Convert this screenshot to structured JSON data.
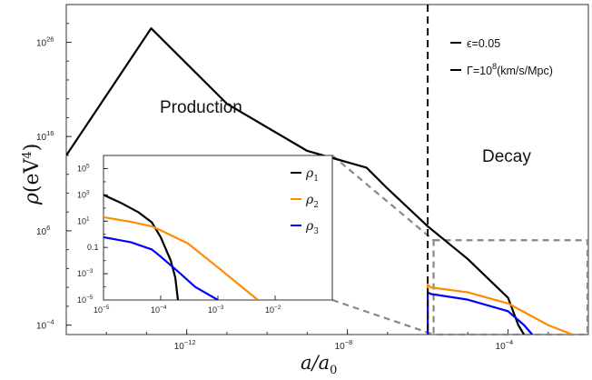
{
  "chart_data": [
    {
      "type": "line",
      "xlabel": "a/a0",
      "ylabel": "ρ(eV⁴)",
      "x_scale": "log",
      "y_scale": "log",
      "xlim": [
        1e-15,
        0.01
      ],
      "ylim": [
        1e-05,
        1e+30
      ],
      "x_ticks": [
        {
          "value": 1e-12,
          "base": "10",
          "exp": "−12"
        },
        {
          "value": 1e-08,
          "base": "10",
          "exp": "−8"
        },
        {
          "value": 0.0001,
          "base": "10",
          "exp": "−4"
        }
      ],
      "y_ticks": [
        {
          "value": 0.0001,
          "base": "10",
          "exp": "−4"
        },
        {
          "value": 1000000.0,
          "base": "10",
          "exp": "6"
        },
        {
          "value": 1e+16,
          "base": "10",
          "exp": "16"
        },
        {
          "value": 1e+26,
          "base": "10",
          "exp": "26"
        }
      ],
      "annotations": [
        "Production",
        "Decay"
      ],
      "legend": {
        "placement": "top-right",
        "entries": [
          {
            "text_a": "ϵ=0.05",
            "base": "",
            "exp": "",
            "text_b": ""
          },
          {
            "text_a": "Γ=10",
            "base": "",
            "exp": "8",
            "text_b": "(km/s/Mpc)"
          }
        ]
      },
      "vertical_marker_x": 1e-06,
      "series": [
        {
          "color": "#000000",
          "x": [
            1e-15,
            1.3e-13,
            1e-11,
            1e-09,
            3e-08,
            1e-07,
            1e-06,
            1e-05,
            0.0001,
            0.00018,
            0.00025
          ],
          "y": [
            100000000000000.0,
            3e+27,
            3e+19,
            300000000000000.0,
            5000000000000.0,
            30000000000.0,
            3000000.0,
            1000.0,
            0.08,
            0.0001,
            1e-05
          ]
        },
        {
          "color": "#ff8c00",
          "x": [
            1e-06,
            1e-06,
            1.2e-06,
            1e-05,
            0.0001,
            0.001,
            0.004
          ],
          "y": [
            1e-05,
            2,
            1,
            0.3,
            0.02,
            0.0001,
            1e-05
          ]
        },
        {
          "color": "#0000ff",
          "x": [
            1e-06,
            1e-06,
            1.2e-06,
            1e-05,
            0.0001,
            0.00025,
            0.0004
          ],
          "y": [
            1e-05,
            0.3,
            0.2,
            0.05,
            0.003,
            0.0001,
            1e-05
          ]
        }
      ]
    },
    {
      "type": "line",
      "xlim": [
        1e-05,
        0.1
      ],
      "ylim": [
        1e-05,
        1000000.0
      ],
      "x_scale": "log",
      "y_scale": "log",
      "x_ticks": [
        {
          "value": 1e-05,
          "base": "10",
          "exp": "−5"
        },
        {
          "value": 0.0001,
          "base": "10",
          "exp": "−4"
        },
        {
          "value": 0.001,
          "base": "10",
          "exp": "−3"
        },
        {
          "value": 0.01,
          "base": "10",
          "exp": "−2"
        }
      ],
      "y_ticks": [
        {
          "value": 1e-05,
          "base": "10",
          "exp": "−5"
        },
        {
          "value": 0.001,
          "base": "10",
          "exp": "−3"
        },
        {
          "value": 0.1,
          "base": "0.1",
          "exp": ""
        },
        {
          "value": 10,
          "base": "10",
          "exp": "1"
        },
        {
          "value": 1000.0,
          "base": "10",
          "exp": "3"
        },
        {
          "value": 100000.0,
          "base": "10",
          "exp": "5"
        }
      ],
      "legend": {
        "placement": "top-right",
        "entries": [
          {
            "name": "ρ1",
            "sym": "ρ",
            "sub": "1",
            "color": "#000000"
          },
          {
            "name": "ρ2",
            "sym": "ρ",
            "sub": "2",
            "color": "#ff8c00"
          },
          {
            "name": "ρ3",
            "sym": "ρ",
            "sub": "3",
            "color": "#0000ff"
          }
        ]
      },
      "series": [
        {
          "name": "ρ1",
          "color": "#000000",
          "x": [
            1e-05,
            2e-05,
            4e-05,
            7e-05,
            0.0001,
            0.00015,
            0.00018,
            0.0002
          ],
          "y": [
            1000,
            250,
            50,
            8,
            0.6,
            0.01,
            0.0005,
            1e-05
          ]
        },
        {
          "name": "ρ2",
          "color": "#ff8c00",
          "x": [
            1e-05,
            3e-05,
            7e-05,
            0.0001,
            0.0003,
            0.001,
            0.005
          ],
          "y": [
            20,
            9,
            4,
            2,
            0.2,
            0.003,
            1e-05
          ]
        },
        {
          "name": "ρ3",
          "color": "#0000ff",
          "x": [
            1e-05,
            3e-05,
            7e-05,
            0.0001,
            0.0002,
            0.0004,
            0.001
          ],
          "y": [
            0.6,
            0.25,
            0.07,
            0.02,
            0.0015,
            0.0001,
            1e-05
          ]
        }
      ]
    }
  ]
}
